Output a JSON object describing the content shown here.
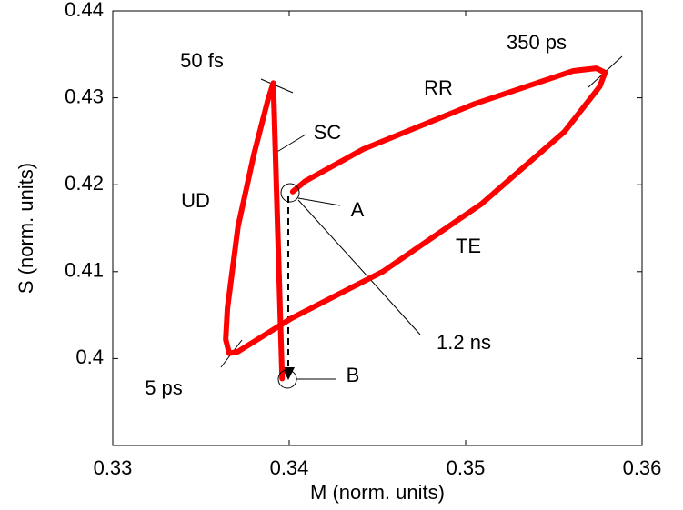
{
  "chart_data": {
    "type": "line",
    "xlabel": "M (norm. units)",
    "ylabel": "S (norm. units)",
    "xlim": [
      0.33,
      0.36
    ],
    "xticks": [
      0.33,
      0.34,
      0.35,
      0.36
    ],
    "ylim": [
      0.39,
      0.44
    ],
    "yticks": [
      0.4,
      0.41,
      0.42,
      0.43,
      0.44
    ],
    "series": [
      {
        "color": "#ff0000",
        "x": [
          0.3396,
          0.3391,
          0.3388,
          0.338,
          0.3371,
          0.3365,
          0.3364,
          0.3366,
          0.3371,
          0.3401,
          0.3453,
          0.3509,
          0.3556,
          0.3576,
          0.3579,
          0.3574,
          0.3561,
          0.3505,
          0.3442,
          0.3409,
          0.3402
        ],
        "values": [
          0.3977,
          0.4317,
          0.4298,
          0.4235,
          0.4152,
          0.4058,
          0.4022,
          0.4006,
          0.4008,
          0.4046,
          0.41,
          0.4178,
          0.4261,
          0.4313,
          0.4329,
          0.4334,
          0.4331,
          0.4293,
          0.4241,
          0.4204,
          0.4192
        ]
      }
    ],
    "annotations": [
      "50 fs",
      "RR",
      "350 ps",
      "SC",
      "UD",
      "A",
      "TE",
      "1.2 ns",
      "5 ps",
      "B"
    ]
  }
}
